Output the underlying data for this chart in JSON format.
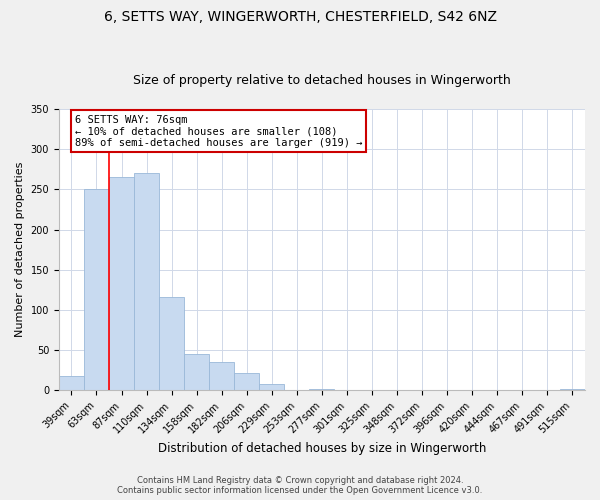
{
  "title": "6, SETTS WAY, WINGERWORTH, CHESTERFIELD, S42 6NZ",
  "subtitle": "Size of property relative to detached houses in Wingerworth",
  "xlabel": "Distribution of detached houses by size in Wingerworth",
  "ylabel": "Number of detached properties",
  "bar_color": "#c8daf0",
  "bar_edge_color": "#9ab8d8",
  "categories": [
    "39sqm",
    "63sqm",
    "87sqm",
    "110sqm",
    "134sqm",
    "158sqm",
    "182sqm",
    "206sqm",
    "229sqm",
    "253sqm",
    "277sqm",
    "301sqm",
    "325sqm",
    "348sqm",
    "372sqm",
    "396sqm",
    "420sqm",
    "444sqm",
    "467sqm",
    "491sqm",
    "515sqm"
  ],
  "values": [
    18,
    250,
    265,
    270,
    116,
    45,
    35,
    21,
    8,
    0,
    2,
    0,
    0,
    1,
    0,
    0,
    0,
    0,
    0,
    0,
    2
  ],
  "ylim": [
    0,
    350
  ],
  "yticks": [
    0,
    50,
    100,
    150,
    200,
    250,
    300,
    350
  ],
  "property_line_x": 1.5,
  "property_line_label": "6 SETTS WAY: 76sqm",
  "annotation_line1": "← 10% of detached houses are smaller (108)",
  "annotation_line2": "89% of semi-detached houses are larger (919) →",
  "footer_line1": "Contains HM Land Registry data © Crown copyright and database right 2024.",
  "footer_line2": "Contains public sector information licensed under the Open Government Licence v3.0.",
  "background_color": "#f0f0f0",
  "plot_background_color": "#ffffff",
  "grid_color": "#d0d8e8",
  "title_fontsize": 10,
  "subtitle_fontsize": 9,
  "xlabel_fontsize": 8.5,
  "ylabel_fontsize": 8,
  "tick_fontsize": 7,
  "footer_fontsize": 6
}
